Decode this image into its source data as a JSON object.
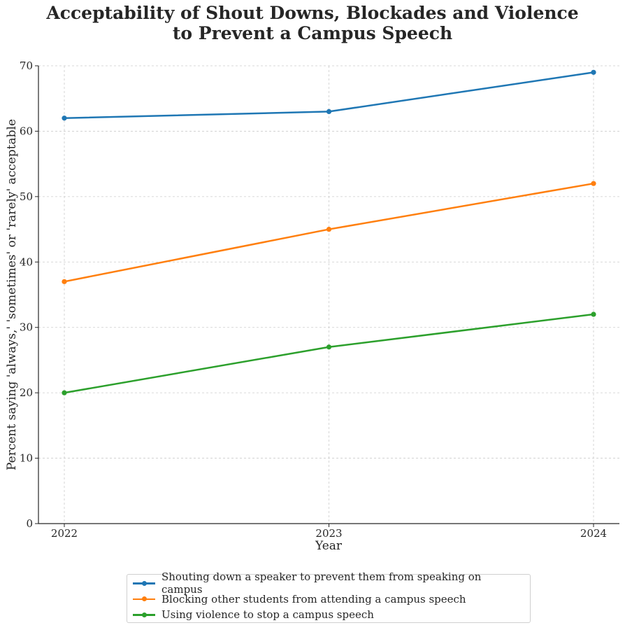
{
  "chart_data": {
    "type": "line",
    "title_lines": [
      "Acceptability of Shout Downs, Blockades and Violence",
      "to Prevent a Campus Speech"
    ],
    "xlabel": "Year",
    "ylabel": "Percent saying 'always,' 'sometimes' or 'rarely' acceptable",
    "x": [
      "2022",
      "2023",
      "2024"
    ],
    "ylim": [
      0,
      70
    ],
    "yticks": [
      0,
      10,
      20,
      30,
      40,
      50,
      60,
      70
    ],
    "grid": true,
    "legend_position": "bottom-center",
    "series": [
      {
        "name": "Shouting down a speaker to prevent them from speaking on campus",
        "color": "#1f77b4",
        "values": [
          62,
          63,
          69
        ]
      },
      {
        "name": "Blocking other students from attending a campus speech",
        "color": "#ff7f0e",
        "values": [
          37,
          45,
          52
        ]
      },
      {
        "name": "Using violence to stop a campus speech",
        "color": "#2ca02c",
        "values": [
          20,
          27,
          32
        ]
      }
    ]
  }
}
